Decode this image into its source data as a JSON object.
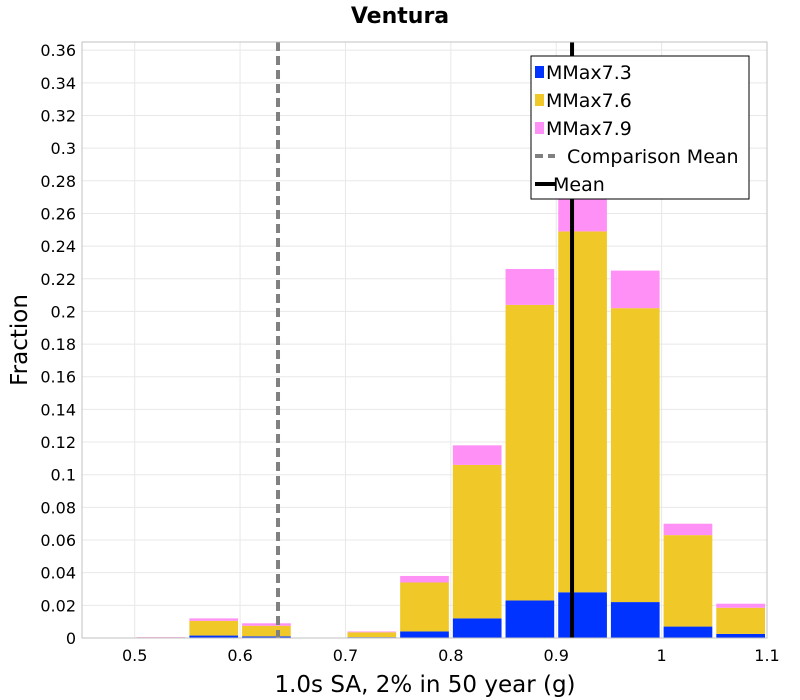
{
  "chart_data": {
    "type": "bar",
    "stacked": true,
    "title": "Ventura",
    "xlabel": "1.0s SA, 2% in 50 year (g)",
    "ylabel": "Fraction",
    "xlim": [
      0.45,
      1.1
    ],
    "ylim": [
      0,
      0.365
    ],
    "xticks": [
      "0.5",
      "0.6",
      "0.7",
      "0.8",
      "0.9",
      "1",
      "1.1"
    ],
    "yticks": [
      "0",
      "0.02",
      "0.04",
      "0.06",
      "0.08",
      "0.1",
      "0.12",
      "0.14",
      "0.16",
      "0.18",
      "0.2",
      "0.22",
      "0.24",
      "0.26",
      "0.28",
      "0.3",
      "0.32",
      "0.34",
      "0.36"
    ],
    "grid": true,
    "bin_width": 0.05,
    "x": [
      0.525,
      0.575,
      0.625,
      0.675,
      0.725,
      0.775,
      0.825,
      0.875,
      0.925,
      0.975,
      1.025,
      1.075
    ],
    "series": [
      {
        "name": "MMax7.3",
        "color": "#0033ff",
        "values": [
          0.0001,
          0.0015,
          0.001,
          0.0,
          0.0005,
          0.004,
          0.012,
          0.023,
          0.028,
          0.022,
          0.007,
          0.0025
        ]
      },
      {
        "name": "MMax7.6",
        "color": "#f0c828",
        "values": [
          0.0003,
          0.009,
          0.0065,
          0.0,
          0.003,
          0.03,
          0.094,
          0.181,
          0.221,
          0.18,
          0.056,
          0.016
        ]
      },
      {
        "name": "MMax7.9",
        "color": "#ff90f5",
        "values": [
          0.0002,
          0.0015,
          0.0015,
          0.0,
          0.0005,
          0.004,
          0.012,
          0.022,
          0.028,
          0.023,
          0.007,
          0.0025
        ]
      }
    ],
    "lines": [
      {
        "name": "Comparison Mean",
        "x": 0.636,
        "color": "#808080",
        "style": "dashed"
      },
      {
        "name": "Mean",
        "x": 0.915,
        "color": "#000000",
        "style": "solid"
      }
    ],
    "legend": {
      "position": "top-right",
      "entries": [
        "MMax7.3",
        "MMax7.6",
        "MMax7.9",
        "Comparison Mean",
        "Mean"
      ]
    }
  }
}
